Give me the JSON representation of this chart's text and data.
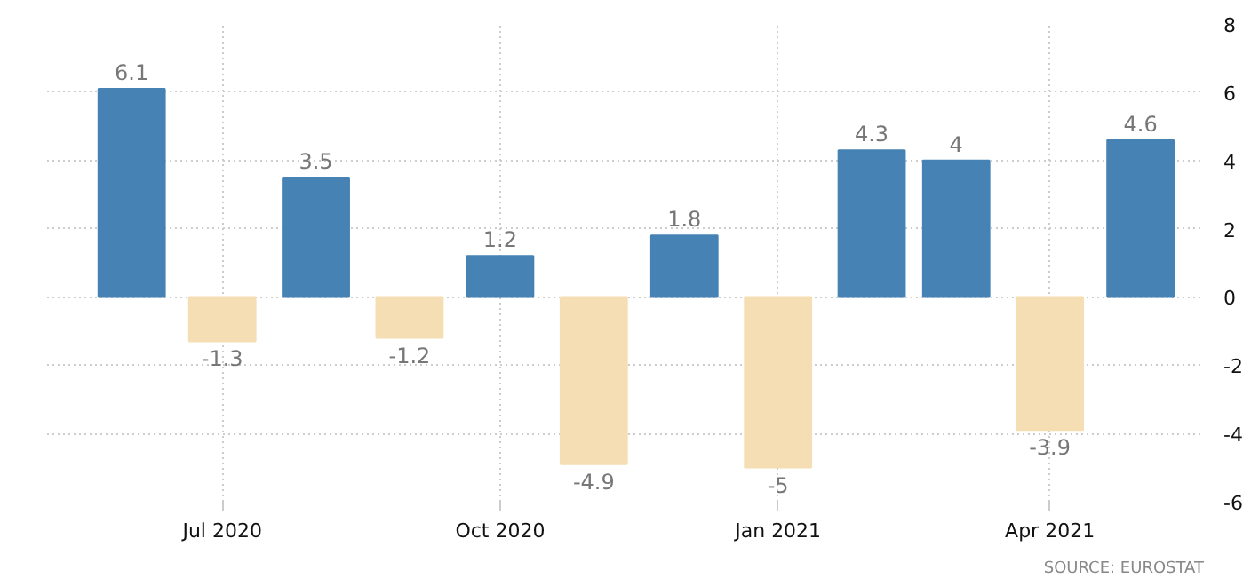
{
  "chart_data": {
    "type": "bar",
    "x": [
      "2020-06",
      "2020-07",
      "2020-08",
      "2020-09",
      "2020-10",
      "2020-11",
      "2020-12",
      "2021-01",
      "2021-02",
      "2021-03",
      "2021-04",
      "2021-05"
    ],
    "values": [
      6.1,
      -1.3,
      3.5,
      -1.2,
      1.2,
      -4.9,
      1.8,
      -5,
      4.3,
      4,
      -3.9,
      4.6
    ],
    "colors": [
      "#4682b4",
      "#f5deb3",
      "#4682b4",
      "#f5deb3",
      "#4682b4",
      "#f5deb3",
      "#4682b4",
      "#f5deb3",
      "#4682b4",
      "#4682b4",
      "#f5deb3",
      "#4682b4"
    ],
    "data_labels": true,
    "xlim": [
      "2020-05-04",
      "2021-05-22"
    ],
    "xticks": [
      {
        "value": "2020-07",
        "label": "Jul 2020"
      },
      {
        "value": "2020-10",
        "label": "Oct 2020"
      },
      {
        "value": "2021-01",
        "label": "Jan 2021"
      },
      {
        "value": "2021-04",
        "label": "Apr 2021"
      }
    ],
    "ylim": [
      -6,
      8
    ],
    "yticks": [
      -6,
      -4,
      -2,
      0,
      2,
      4,
      6,
      8
    ],
    "grid": true,
    "annotations": [
      "SOURCE: EUROSTAT"
    ]
  }
}
